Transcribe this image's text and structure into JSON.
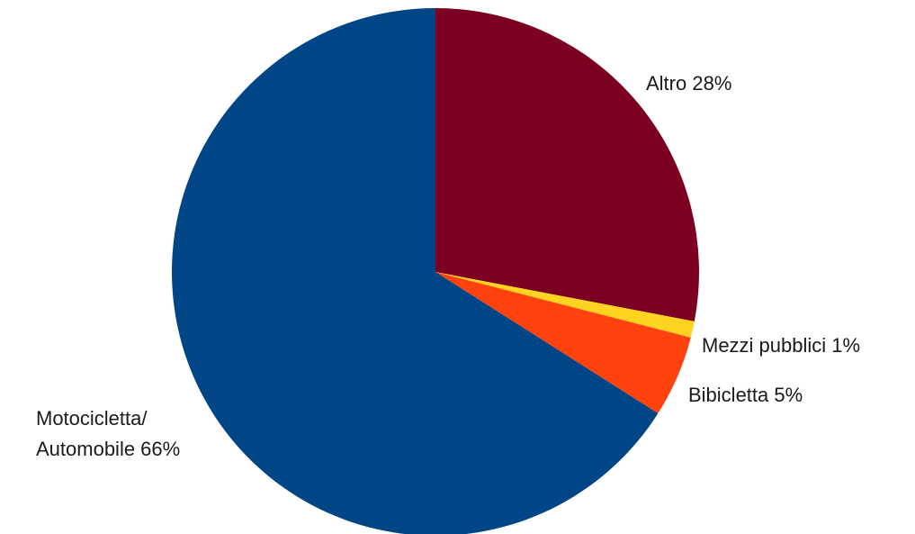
{
  "chart_data": {
    "type": "pie",
    "title": "",
    "start_angle_deg": 0,
    "direction": "clockwise",
    "slices": [
      {
        "label_lines": [
          "Altro 28%"
        ],
        "value": 28,
        "color": "#7B0021",
        "label_anchor": "start"
      },
      {
        "label_lines": [
          "Mezzi pubblici 1%"
        ],
        "value": 1,
        "color": "#FFD320",
        "label_anchor": "start"
      },
      {
        "label_lines": [
          "Bibicletta 5%"
        ],
        "value": 5,
        "color": "#FF420E",
        "label_anchor": "start"
      },
      {
        "label_lines": [
          "Motocicletta/",
          "Automobile 66%"
        ],
        "value": 66,
        "color": "#004586",
        "label_anchor": "start"
      }
    ]
  }
}
